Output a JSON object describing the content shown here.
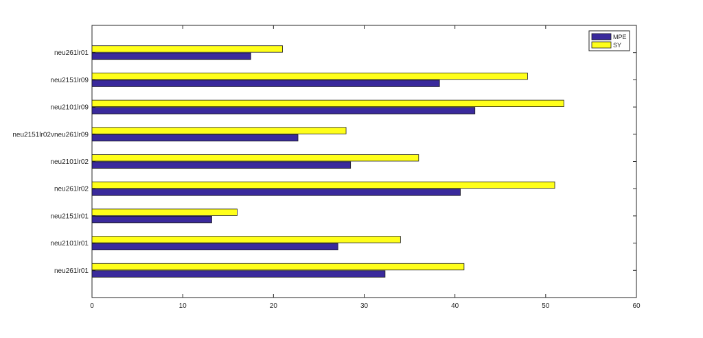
{
  "chart_data": {
    "type": "bar",
    "orientation": "horizontal",
    "categories": [
      "neu261lr01",
      "neu2101lr01",
      "neu2151lr01",
      "neu261lr02",
      "neu2101lr02",
      "neu2151lr02vneu261lr09",
      "neu2101lr09",
      "neu2151lr09",
      "neu261lr01"
    ],
    "series": [
      {
        "name": "MPE",
        "color": "#3a2a9c",
        "values": [
          32.3,
          27.1,
          13.2,
          40.6,
          28.5,
          22.7,
          42.2,
          38.3,
          17.5
        ]
      },
      {
        "name": "SY",
        "color": "#ffff1a",
        "values": [
          41,
          34,
          16,
          51,
          36,
          28,
          52,
          48,
          21
        ]
      }
    ],
    "xlim": [
      0,
      60
    ],
    "xticks": [
      "0",
      "10",
      "20",
      "30",
      "40",
      "50",
      "60"
    ],
    "title": "",
    "xlabel": "",
    "ylabel": "",
    "grid": false,
    "legend_position": "top-right"
  }
}
